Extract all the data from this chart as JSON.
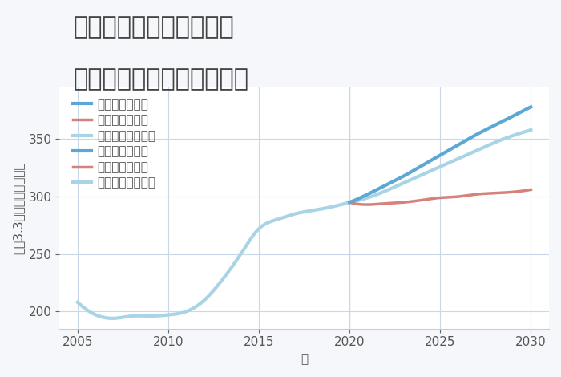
{
  "title_line1": "東京都西多摩郡瑞穂町の",
  "title_line2": "中古マンションの価格推移",
  "xlabel": "年",
  "ylabel": "平（3.3㎡）単価（万円）",
  "background_color": "#f5f7fa",
  "plot_bg_color": "#ffffff",
  "grid_color": "#c8d8e8",
  "xlim": [
    2004,
    2031
  ],
  "ylim": [
    185,
    395
  ],
  "xticks": [
    2005,
    2010,
    2015,
    2020,
    2025,
    2030
  ],
  "yticks": [
    200,
    250,
    300,
    350
  ],
  "legend": [
    {
      "label": "グッドシナリオ",
      "color": "#5ba8d4",
      "lw": 3.0
    },
    {
      "label": "バッドシナリオ",
      "color": "#d4827a",
      "lw": 2.5
    },
    {
      "label": "ノーマルシナリオ",
      "color": "#a8d4e6",
      "lw": 3.0
    }
  ],
  "historical": {
    "years": [
      2005,
      2006,
      2007,
      2008,
      2009,
      2010,
      2011,
      2012,
      2013,
      2014,
      2015,
      2016,
      2017,
      2018,
      2019,
      2020
    ],
    "values": [
      208,
      197,
      194,
      196,
      196,
      197,
      200,
      210,
      228,
      250,
      272,
      280,
      285,
      288,
      291,
      295
    ]
  },
  "good": {
    "years": [
      2020,
      2021,
      2022,
      2023,
      2024,
      2025,
      2026,
      2027,
      2028,
      2029,
      2030
    ],
    "values": [
      295,
      302,
      310,
      318,
      327,
      336,
      345,
      354,
      362,
      370,
      378
    ]
  },
  "bad": {
    "years": [
      2020,
      2021,
      2022,
      2023,
      2024,
      2025,
      2026,
      2027,
      2028,
      2029,
      2030
    ],
    "values": [
      295,
      293,
      294,
      295,
      297,
      299,
      300,
      302,
      303,
      304,
      306
    ]
  },
  "normal": {
    "years": [
      2020,
      2021,
      2022,
      2023,
      2024,
      2025,
      2026,
      2027,
      2028,
      2029,
      2030
    ],
    "values": [
      295,
      299,
      305,
      312,
      319,
      326,
      333,
      340,
      347,
      353,
      358
    ]
  },
  "forecast_vline_x": 2020,
  "title_fontsize": 22,
  "label_fontsize": 11,
  "tick_fontsize": 11,
  "legend_fontsize": 11
}
